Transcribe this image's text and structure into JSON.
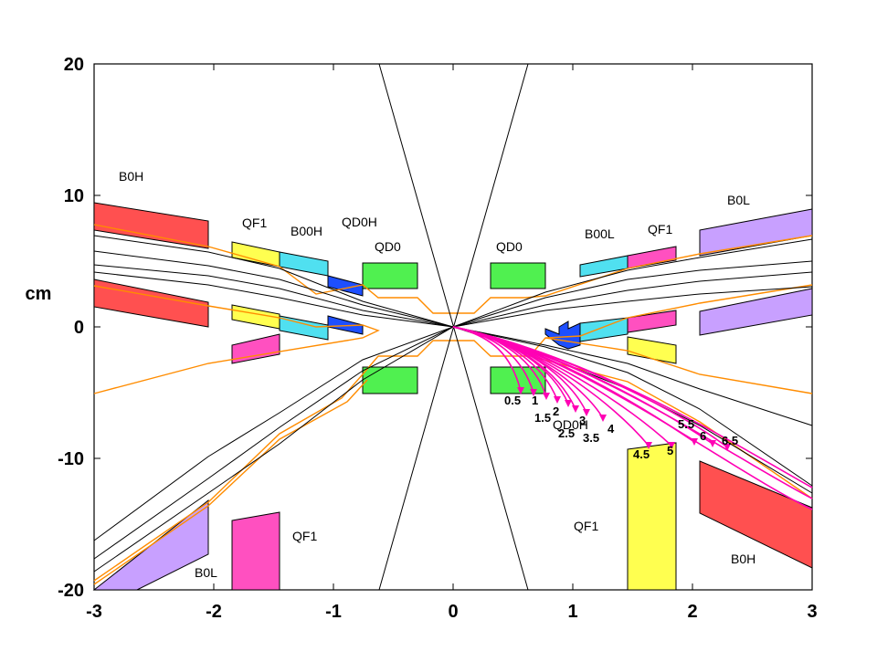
{
  "chart_data": {
    "type": "diagram",
    "title": "",
    "xlabel": "",
    "ylabel": "cm",
    "xlim": [
      -3,
      3
    ],
    "ylim": [
      -20,
      20
    ],
    "x_ticks": [
      "-3",
      "-2",
      "-1",
      "0",
      "1",
      "2",
      "3"
    ],
    "y_ticks": [
      "20",
      "10",
      "0",
      "-10",
      "-20"
    ],
    "magnets": [
      {
        "name": "B0H",
        "side": "upper-left",
        "color": "#ff5050"
      },
      {
        "name": "QF1",
        "side": "upper-left",
        "color": "#ffff50"
      },
      {
        "name": "B00H",
        "side": "upper-left",
        "color": "#50e0f0"
      },
      {
        "name": "QD0H",
        "side": "upper-left",
        "color": "#1e4fff"
      },
      {
        "name": "QD0",
        "side": "left",
        "color": "#50f050"
      },
      {
        "name": "QD0",
        "side": "right",
        "color": "#50f050"
      },
      {
        "name": "B00L",
        "side": "upper-right",
        "color": "#50e0f0"
      },
      {
        "name": "QF1",
        "side": "upper-right",
        "color": "#ff50c0"
      },
      {
        "name": "B0L",
        "side": "upper-right",
        "color": "#c8a0ff"
      },
      {
        "name": "QD0H",
        "side": "lower-right",
        "color": "#1e4fff"
      },
      {
        "name": "QF1",
        "side": "lower-right",
        "color": "#ffff50"
      },
      {
        "name": "B0H",
        "side": "lower-right",
        "color": "#ff5050"
      },
      {
        "name": "QF1",
        "side": "lower-left",
        "color": "#ff50c0"
      },
      {
        "name": "B0L",
        "side": "lower-left",
        "color": "#c8a0ff"
      }
    ],
    "trajectory_labels": [
      "0.5",
      "1",
      "1.5",
      "2",
      "2.5",
      "3",
      "3.5",
      "4",
      "4.5",
      "5",
      "5.5",
      "6",
      "6.5"
    ],
    "colors": {
      "beampipe": "#ff8c00",
      "trajectory": "#ff00b4",
      "lines": "#000000"
    }
  }
}
